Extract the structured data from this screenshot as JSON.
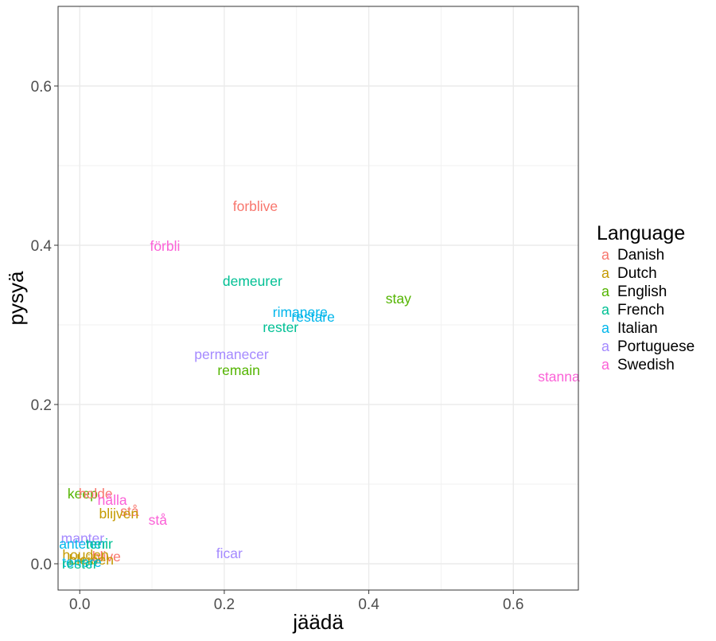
{
  "chart_data": {
    "type": "scatter",
    "title": "",
    "xlabel": "jäädä",
    "ylabel": "pysyä",
    "xlim": [
      -0.03,
      0.69
    ],
    "ylim": [
      -0.033,
      0.7
    ],
    "x_ticks": [
      0.0,
      0.2,
      0.4,
      0.6
    ],
    "x_tick_labels": [
      "0.0",
      "0.2",
      "0.4",
      "0.6"
    ],
    "y_ticks": [
      0.0,
      0.2,
      0.4,
      0.6
    ],
    "y_tick_labels": [
      "0.0",
      "0.2",
      "0.4",
      "0.6"
    ],
    "grid": true,
    "legend": {
      "title": "Language",
      "placement": "right",
      "glyph": "a",
      "entries": [
        {
          "name": "Danish",
          "color": "#F8766D"
        },
        {
          "name": "Dutch",
          "color": "#C49A00"
        },
        {
          "name": "English",
          "color": "#53B400"
        },
        {
          "name": "French",
          "color": "#00C094"
        },
        {
          "name": "Italian",
          "color": "#00B6EB"
        },
        {
          "name": "Portuguese",
          "color": "#A58AFF"
        },
        {
          "name": "Swedish",
          "color": "#FB61D7"
        }
      ]
    },
    "points": [
      {
        "label": "forblive",
        "language": "Danish",
        "x": 0.243,
        "y": 0.449
      },
      {
        "label": "förbli",
        "language": "Swedish",
        "x": 0.118,
        "y": 0.399
      },
      {
        "label": "demeurer",
        "language": "French",
        "x": 0.239,
        "y": 0.355
      },
      {
        "label": "stay",
        "language": "English",
        "x": 0.441,
        "y": 0.333
      },
      {
        "label": "rimanere",
        "language": "Italian",
        "x": 0.305,
        "y": 0.316
      },
      {
        "label": "restare",
        "language": "Italian",
        "x": 0.323,
        "y": 0.31
      },
      {
        "label": "rester",
        "language": "French",
        "x": 0.278,
        "y": 0.297
      },
      {
        "label": "permanecer",
        "language": "Portuguese",
        "x": 0.21,
        "y": 0.263
      },
      {
        "label": "remain",
        "language": "English",
        "x": 0.22,
        "y": 0.243
      },
      {
        "label": "stanna",
        "language": "Swedish",
        "x": 0.663,
        "y": 0.235
      },
      {
        "label": "keep",
        "language": "English",
        "x": 0.004,
        "y": 0.088
      },
      {
        "label": "holde",
        "language": "Danish",
        "x": 0.022,
        "y": 0.088
      },
      {
        "label": "hålla",
        "language": "Swedish",
        "x": 0.045,
        "y": 0.08
      },
      {
        "label": "stå",
        "language": "Danish",
        "x": 0.069,
        "y": 0.066
      },
      {
        "label": "blijven",
        "language": "Dutch",
        "x": 0.054,
        "y": 0.063
      },
      {
        "label": "stå",
        "language": "Swedish",
        "x": 0.108,
        "y": 0.055
      },
      {
        "label": "manter",
        "language": "Portuguese",
        "x": 0.004,
        "y": 0.032
      },
      {
        "label": "antener",
        "language": "Italian",
        "x": 0.004,
        "y": 0.025
      },
      {
        "label": "tenir",
        "language": "French",
        "x": 0.027,
        "y": 0.025
      },
      {
        "label": "ficar",
        "language": "Portuguese",
        "x": 0.207,
        "y": 0.013
      },
      {
        "label": "blive",
        "language": "Danish",
        "x": 0.037,
        "y": 0.009
      },
      {
        "label": "houden",
        "language": "Dutch",
        "x": 0.008,
        "y": 0.011
      },
      {
        "label": "bleiben",
        "language": "Dutch",
        "x": 0.016,
        "y": 0.005
      },
      {
        "label": "tenere",
        "language": "Italian",
        "x": 0.003,
        "y": 0.002
      },
      {
        "label": "rester",
        "language": "French",
        "x": 0.0,
        "y": 0.0
      }
    ]
  }
}
